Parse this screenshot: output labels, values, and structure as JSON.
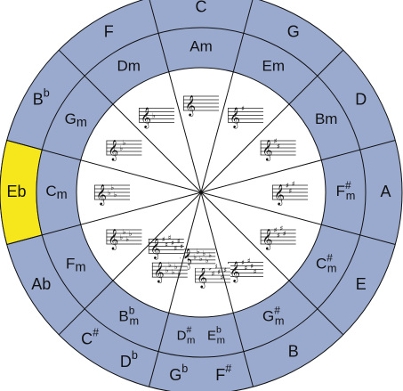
{
  "colors": {
    "outer_ring": "#9aaacf",
    "middle_ring": "#9aaacf",
    "inner_disc": "#ffffff",
    "highlight": "#f5e71c",
    "stroke": "#111111"
  },
  "highlight_index": 9,
  "segments": [
    {
      "major": "C",
      "major_sup": "",
      "minor": "Am",
      "minor_sup": "",
      "minor_sub": "",
      "key_signature": {
        "type": "none",
        "count": 0
      }
    },
    {
      "major": "G",
      "major_sup": "",
      "minor": "Em",
      "minor_sup": "",
      "minor_sub": "",
      "key_signature": {
        "type": "sharp",
        "count": 1
      }
    },
    {
      "major": "D",
      "major_sup": "",
      "minor": "Bm",
      "minor_sup": "",
      "minor_sub": "",
      "key_signature": {
        "type": "sharp",
        "count": 2
      }
    },
    {
      "major": "A",
      "major_sup": "",
      "minor": "F",
      "minor_sup": "#",
      "minor_sub": "m",
      "key_signature": {
        "type": "sharp",
        "count": 3
      }
    },
    {
      "major": "E",
      "major_sup": "",
      "minor": "C",
      "minor_sup": "#",
      "minor_sub": "m",
      "key_signature": {
        "type": "sharp",
        "count": 4
      }
    },
    {
      "major": "B",
      "major_sup": "",
      "minor": "G",
      "minor_sup": "#",
      "minor_sub": "m",
      "key_signature": {
        "type": "sharp",
        "count": 5
      }
    },
    {
      "major": "F",
      "major_sup": "#",
      "major2": "G",
      "major2_sup": "b",
      "minor": "E",
      "minor_sup": "b",
      "minor_sub": "m",
      "minor2": "D",
      "minor2_sup": "#",
      "minor2_sub": "m",
      "key_signature": {
        "type": "sharp",
        "count": 6
      },
      "key_signature2": {
        "type": "flat",
        "count": 6
      }
    },
    {
      "major": "D",
      "major_sup": "b",
      "major2": "C",
      "major2_sup": "#",
      "minor": "B",
      "minor_sup": "b",
      "minor_sub": "m",
      "key_signature": {
        "type": "flat",
        "count": 5
      },
      "key_signature2": {
        "type": "sharp",
        "count": 7
      }
    },
    {
      "major": "Ab",
      "major_sup": "",
      "minor": "F",
      "minor_sup": "",
      "minor_sub": "m",
      "key_signature": {
        "type": "flat",
        "count": 4
      }
    },
    {
      "major": "Eb",
      "major_sup": "",
      "minor": "C",
      "minor_sup": "",
      "minor_sub": "m",
      "key_signature": {
        "type": "flat",
        "count": 3
      }
    },
    {
      "major": "B",
      "major_sup": "b",
      "minor": "G",
      "minor_sup": "",
      "minor_sub": "m",
      "key_signature": {
        "type": "flat",
        "count": 2
      }
    },
    {
      "major": "F",
      "major_sup": "",
      "minor": "Dm",
      "minor_sup": "",
      "minor_sub": "",
      "key_signature": {
        "type": "flat",
        "count": 1
      }
    }
  ]
}
